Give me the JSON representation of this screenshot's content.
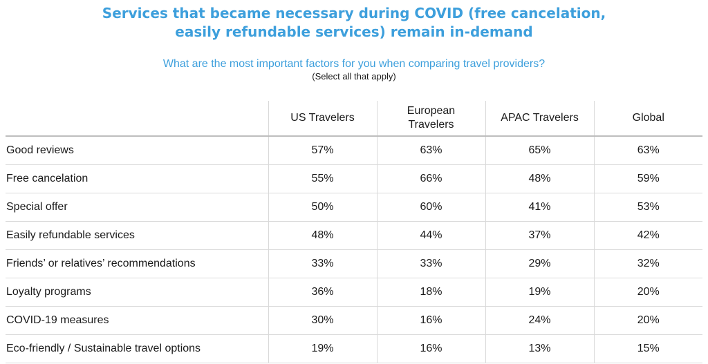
{
  "title": {
    "line1": "Services that became necessary during COVID (free cancelation,",
    "line2": "easily refundable services) remain in-demand"
  },
  "question": "What are the most important factors for you when comparing travel providers?",
  "note": "(Select all that apply)",
  "colors": {
    "title": "#3d9fdc",
    "question": "#3d9fdc",
    "rule": "#d9d9d9"
  },
  "chart_data": {
    "type": "table",
    "columns": [
      "",
      "US Travelers",
      "European Travelers",
      "APAC Travelers",
      "Global"
    ],
    "rows": [
      [
        "Good reviews",
        "57%",
        "63%",
        "65%",
        "63%"
      ],
      [
        "Free cancelation",
        "55%",
        "66%",
        "48%",
        "59%"
      ],
      [
        "Special offer",
        "50%",
        "60%",
        "41%",
        "53%"
      ],
      [
        "Easily refundable services",
        "48%",
        "44%",
        "37%",
        "42%"
      ],
      [
        "Friends’ or relatives’ recommendations",
        "33%",
        "33%",
        "29%",
        "32%"
      ],
      [
        "Loyalty programs",
        "36%",
        "18%",
        "19%",
        "20%"
      ],
      [
        "COVID-19 measures",
        "30%",
        "16%",
        "24%",
        "20%"
      ],
      [
        "Eco-friendly / Sustainable travel options",
        "19%",
        "16%",
        "13%",
        "15%"
      ]
    ]
  }
}
